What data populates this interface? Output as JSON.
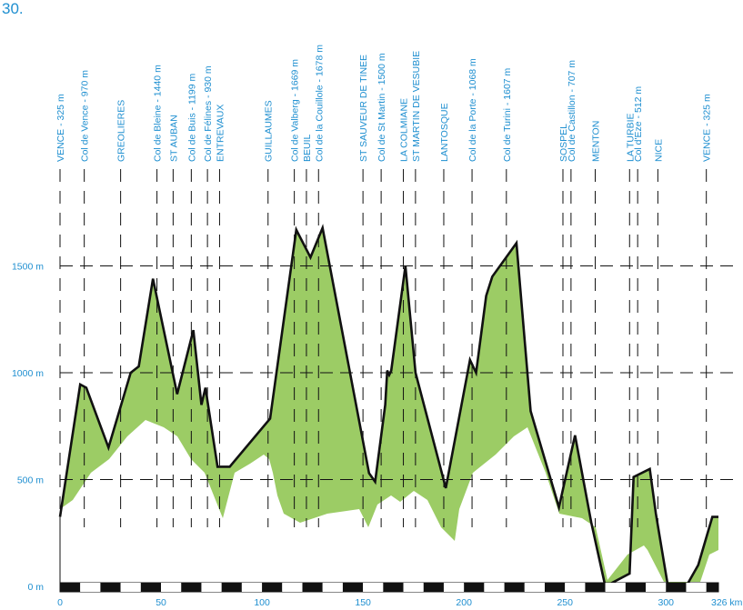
{
  "page_number": "30.",
  "colors": {
    "accent": "#1f8fd0",
    "fill": "#9ccc65",
    "profile": "#111111",
    "guides": "#111111"
  },
  "chart_data": {
    "type": "area",
    "title": "",
    "xlabel": "",
    "ylabel": "",
    "xlim": [
      0,
      326
    ],
    "ylim": [
      0,
      1800
    ],
    "x_ticks": [
      {
        "value": 0,
        "label": "0"
      },
      {
        "value": 50,
        "label": "50"
      },
      {
        "value": 100,
        "label": "100"
      },
      {
        "value": 150,
        "label": "150"
      },
      {
        "value": 200,
        "label": "200"
      },
      {
        "value": 250,
        "label": "250"
      },
      {
        "value": 300,
        "label": "300"
      },
      {
        "value": 326,
        "label": "326 km"
      }
    ],
    "y_ticks": [
      {
        "value": 0,
        "label": "0 m"
      },
      {
        "value": 500,
        "label": "500 m"
      },
      {
        "value": 1000,
        "label": "1000 m"
      },
      {
        "value": 1500,
        "label": "1500 m"
      }
    ],
    "series": [
      {
        "x": [
          0,
          10,
          13,
          24,
          35,
          39,
          46,
          58,
          66,
          70,
          72,
          78,
          84,
          104,
          117,
          124,
          130,
          153,
          156,
          161,
          162,
          163,
          164,
          171,
          176,
          191,
          203,
          206,
          211,
          214,
          226,
          233,
          247,
          255,
          263,
          270,
          282,
          284,
          292,
          295,
          301,
          310,
          316,
          323,
          326
        ],
        "y": [
          325,
          945,
          930,
          650,
          1000,
          1030,
          1440,
          900,
          1199,
          850,
          930,
          560,
          560,
          785,
          1669,
          1540,
          1678,
          530,
          490,
          850,
          1010,
          990,
          1010,
          1500,
          1000,
          460,
          1060,
          1000,
          1360,
          1450,
          1607,
          820,
          370,
          707,
          300,
          0,
          60,
          512,
          550,
          340,
          0,
          0,
          100,
          325,
          325
        ]
      }
    ],
    "stops": [
      {
        "km": 0,
        "name": "VENCE - 325 m"
      },
      {
        "km": 12,
        "name": "Col de Vence - 970 m"
      },
      {
        "km": 30,
        "name": "GREOLIERES"
      },
      {
        "km": 48,
        "name": "Col de Bleine - 1440 m"
      },
      {
        "km": 56,
        "name": "ST AUBAN"
      },
      {
        "km": 65,
        "name": "Col de Buis - 1199 m"
      },
      {
        "km": 73,
        "name": "Col de Félines - 930 m"
      },
      {
        "km": 79,
        "name": "ENTREVAUX"
      },
      {
        "km": 103,
        "name": "GUILLAUMES"
      },
      {
        "km": 116,
        "name": "Col de Valberg - 1669 m"
      },
      {
        "km": 122,
        "name": "BEUIL"
      },
      {
        "km": 128,
        "name": "Col de la Couillole - 1678 m"
      },
      {
        "km": 150,
        "name": "ST SAUVEUR DE TINEE"
      },
      {
        "km": 159,
        "name": "Col de St Martin - 1500 m"
      },
      {
        "km": 170,
        "name": "LA COLMIANE"
      },
      {
        "km": 176,
        "name": "ST MARTIN DE VESUBIE"
      },
      {
        "km": 190,
        "name": "LANTOSQUE"
      },
      {
        "km": 204,
        "name": "Col de la Porte - 1068 m"
      },
      {
        "km": 221,
        "name": "Col de Turini - 1607 m"
      },
      {
        "km": 249,
        "name": "SOSPEL"
      },
      {
        "km": 253,
        "name": "Col de Castillon - 707 m"
      },
      {
        "km": 265,
        "name": "MENTON"
      },
      {
        "km": 282,
        "name": "LA TURBIE"
      },
      {
        "km": 286,
        "name": "Col d'Eze - 512 m"
      },
      {
        "km": 296,
        "name": "NICE"
      },
      {
        "km": 320,
        "name": "VENCE - 325 m"
      }
    ]
  }
}
